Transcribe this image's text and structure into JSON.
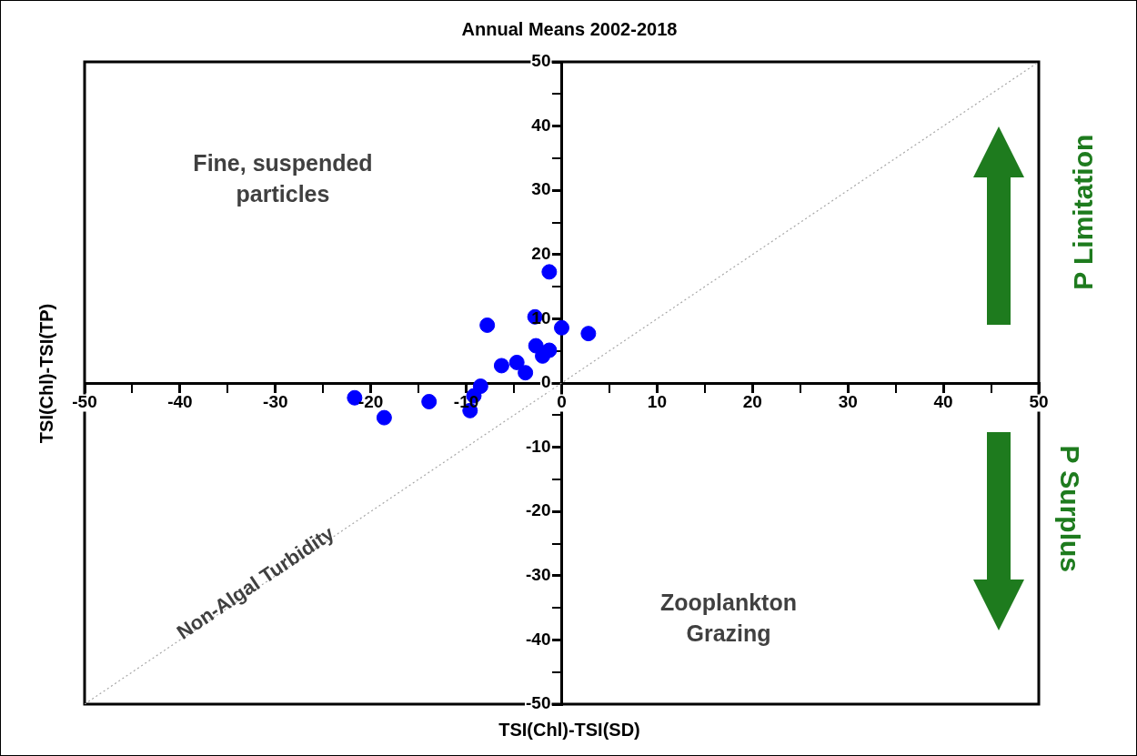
{
  "chart_data": {
    "type": "scatter",
    "title": "Annual Means 2002-2018",
    "xlabel": "TSI(Chl)-TSI(SD)",
    "ylabel": "TSI(Chl)-TSI(TP)",
    "x": [
      -1.3,
      -7.8,
      0,
      2.8,
      -2.7,
      -1.3,
      -2.0,
      -6.3,
      -4.7,
      -3.8,
      -8.5,
      -9.2,
      -9.6,
      -21.7,
      -13.9,
      -18.6,
      -2.8
    ],
    "series": [
      {
        "color": "#0000ff",
        "values": [
          17.3,
          9.0,
          8.6,
          7.7,
          5.8,
          5.1,
          4.2,
          2.7,
          3.2,
          1.6,
          -0.5,
          -2.0,
          -4.3,
          -2.3,
          -2.9,
          -5.4,
          10.3
        ]
      },
      {
        "type": "line",
        "color": "#a6a6a6",
        "line_style": "dotted",
        "marker": "none",
        "x": [
          -50,
          50
        ],
        "values": [
          -50,
          50
        ]
      }
    ],
    "marker": "circle",
    "xlim": [
      -50,
      50
    ],
    "ylim": [
      -50,
      50
    ],
    "xticks": [
      -50,
      {
        "value": -45,
        "label": null
      },
      -40,
      {
        "value": -35,
        "label": null
      },
      -30,
      {
        "value": -25,
        "label": null
      },
      -20,
      {
        "value": -15,
        "label": null
      },
      -10,
      {
        "value": -5,
        "label": null
      },
      0,
      {
        "value": 5,
        "label": null
      },
      10,
      {
        "value": 15,
        "label": null
      },
      20,
      {
        "value": 25,
        "label": null
      },
      30,
      {
        "value": 35,
        "label": null
      },
      40,
      {
        "value": 45,
        "label": null
      },
      50
    ],
    "yticks": [
      -50,
      {
        "value": -45,
        "label": null
      },
      -40,
      {
        "value": -35,
        "label": null
      },
      -30,
      {
        "value": -25,
        "label": null
      },
      -20,
      {
        "value": -15,
        "label": null
      },
      -10,
      {
        "value": -5,
        "label": null
      },
      0,
      {
        "value": 5,
        "label": null
      },
      10,
      {
        "value": 15,
        "label": null
      },
      20,
      {
        "value": 25,
        "label": null
      },
      30,
      {
        "value": 35,
        "label": null
      },
      40,
      {
        "value": 45,
        "label": null
      },
      50
    ],
    "grid": false,
    "legend": false,
    "annotations": [
      "Fine, suspended particles",
      "Zooplankton Grazing",
      "Non-Algal Turbidity",
      "P Limitation",
      "P Surplus"
    ]
  }
}
